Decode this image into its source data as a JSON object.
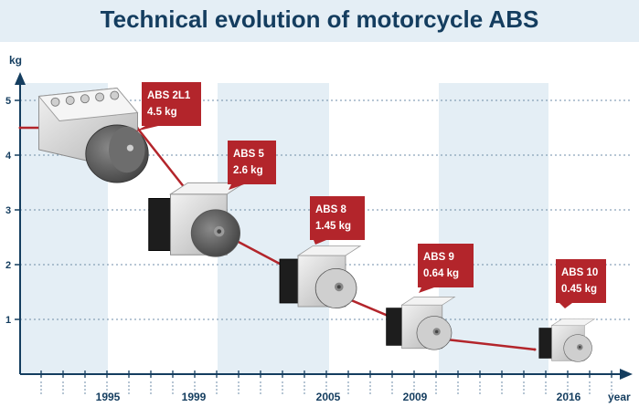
{
  "title": "Technical evolution of motorcycle ABS",
  "chart_data": {
    "type": "line",
    "title": "Technical evolution of motorcycle ABS",
    "ylabel": "kg",
    "xlabel": "year",
    "ylim": [
      0,
      5
    ],
    "yticks": [
      "1",
      "2",
      "3",
      "4",
      "5"
    ],
    "xticks": [
      "1995",
      "1999",
      "2005",
      "2009",
      "2016"
    ],
    "series": [
      {
        "values": [
          4.5,
          4.5,
          2.6,
          1.45,
          0.64,
          0.45
        ],
        "x": [
          "start",
          "1995",
          "1999",
          "2005",
          "2009",
          "2016"
        ]
      }
    ],
    "annotations": [
      {
        "name": "ABS 2L1",
        "weight": "4.5 kg"
      },
      {
        "name": "ABS 5",
        "weight": "2.6 kg"
      },
      {
        "name": "ABS 8",
        "weight": "1.45 kg"
      },
      {
        "name": "ABS 9",
        "weight": "0.64 kg"
      },
      {
        "name": "ABS 10",
        "weight": "0.45 kg"
      }
    ],
    "grid": true,
    "colors": {
      "title": "#143d5f",
      "axis": "#143d5f",
      "line": "#b3252b",
      "label_box": "#b3252b",
      "band": "#e4eef5",
      "grid": "#6f8ea8"
    }
  }
}
